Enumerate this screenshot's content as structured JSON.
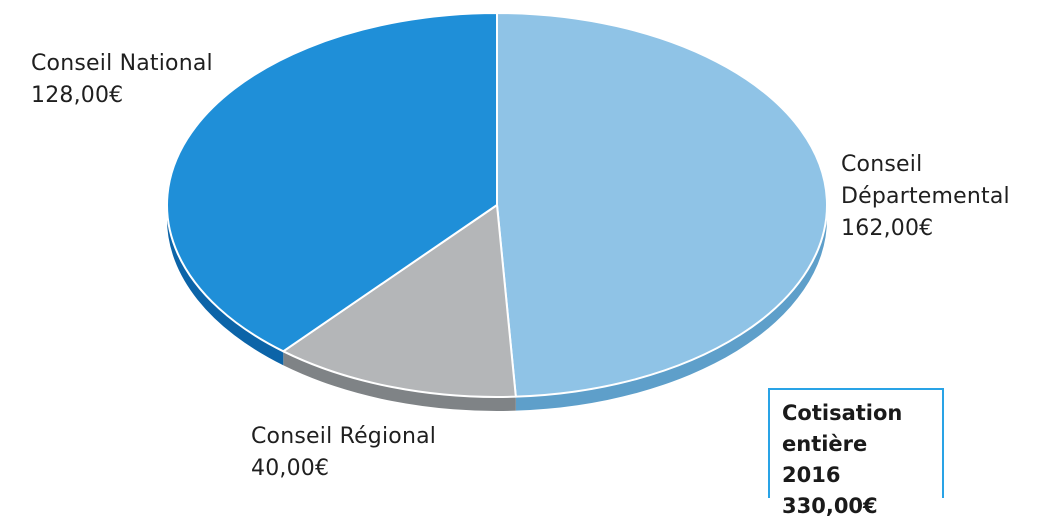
{
  "chart_data": {
    "type": "pie",
    "title": "",
    "slices": [
      {
        "label_line1": "Conseil",
        "label_line2": "Départemental",
        "value_text": "162,00€",
        "value": 162.0,
        "color": "#8fc3e6",
        "side": "#5e9fca"
      },
      {
        "label_line1": "Conseil Régional",
        "label_line2": "",
        "value_text": "40,00€",
        "value": 40.0,
        "color": "#b4b6b8",
        "side": "#7f8386"
      },
      {
        "label_line1": "Conseil National",
        "label_line2": "",
        "value_text": "128,00€",
        "value": 128.0,
        "color": "#1f8fd8",
        "side": "#0c64a8"
      }
    ],
    "total_box": {
      "line1": "Cotisation",
      "line2": "entière 2016",
      "line3": "330,00€"
    },
    "border_color": "#29a3e6"
  }
}
